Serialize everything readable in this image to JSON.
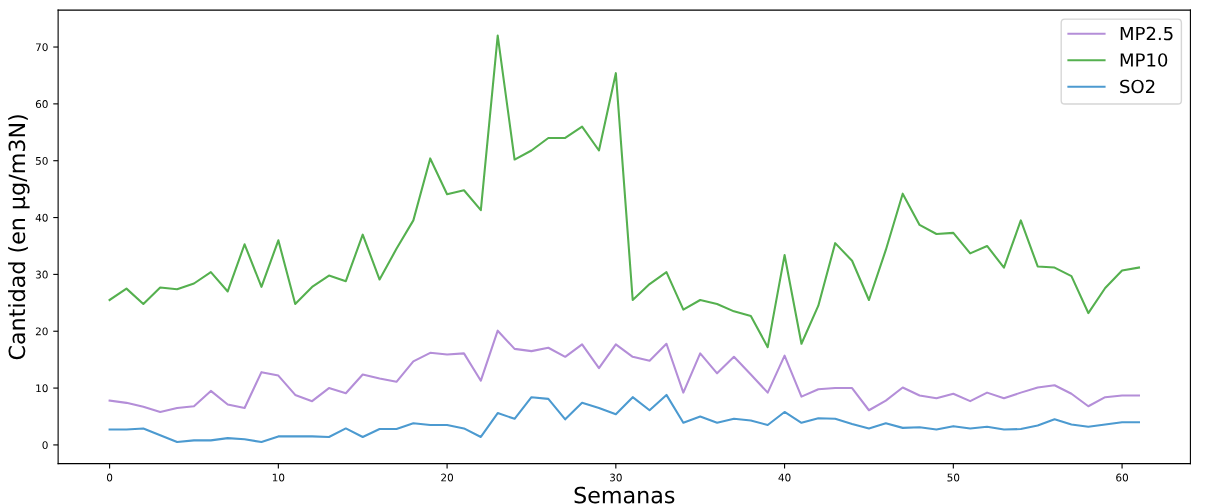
{
  "chart_data": {
    "type": "line",
    "xlabel": "Semanas",
    "ylabel": "Cantidad (en µg/m3N)",
    "x": [
      0,
      1,
      2,
      3,
      4,
      5,
      6,
      7,
      8,
      9,
      10,
      11,
      12,
      13,
      14,
      15,
      16,
      17,
      18,
      19,
      20,
      21,
      22,
      23,
      24,
      25,
      26,
      27,
      28,
      29,
      30,
      31,
      32,
      33,
      34,
      35,
      36,
      37,
      38,
      39,
      40,
      41,
      42,
      43,
      44,
      45,
      46,
      47,
      48,
      49,
      50,
      51,
      52,
      53,
      54,
      55,
      56,
      57,
      58,
      59,
      60,
      61
    ],
    "series": [
      {
        "name": "MP2.5",
        "color": "#b48ed8",
        "values": [
          7.8,
          7.4,
          6.7,
          5.8,
          6.5,
          6.8,
          9.5,
          7.1,
          6.5,
          12.8,
          12.2,
          8.8,
          7.7,
          10.0,
          9.1,
          12.4,
          11.7,
          11.1,
          14.7,
          16.2,
          15.9,
          16.1,
          11.3,
          20.1,
          16.9,
          16.5,
          17.1,
          15.5,
          17.7,
          13.5,
          17.7,
          15.5,
          14.8,
          17.8,
          9.2,
          16.1,
          12.6,
          15.5,
          12.4,
          9.2,
          15.7,
          8.5,
          9.8,
          10.0,
          10.0,
          6.1,
          7.8,
          10.1,
          8.7,
          8.2,
          9.0,
          7.7,
          9.2,
          8.2,
          9.2,
          10.1,
          10.5,
          9.0,
          6.8,
          8.4,
          8.7,
          8.7
        ]
      },
      {
        "name": "MP10",
        "color": "#55b04f",
        "values": [
          25.5,
          27.5,
          24.8,
          27.7,
          27.4,
          28.4,
          30.4,
          27.0,
          35.3,
          27.8,
          36.0,
          24.8,
          27.8,
          29.8,
          28.8,
          37.0,
          29.1,
          34.5,
          39.5,
          50.4,
          44.1,
          44.8,
          41.3,
          72.0,
          50.2,
          51.8,
          54.0,
          54.0,
          56.0,
          51.8,
          65.4,
          25.5,
          28.3,
          30.4,
          23.8,
          25.5,
          24.8,
          23.5,
          22.7,
          17.2,
          33.4,
          17.8,
          24.5,
          35.5,
          32.4,
          25.5,
          34.3,
          44.2,
          38.7,
          37.1,
          37.3,
          33.7,
          35.0,
          31.2,
          39.5,
          31.4,
          31.2,
          29.7,
          23.2,
          27.6,
          30.7,
          31.2
        ]
      },
      {
        "name": "SO2",
        "color": "#4c9ad0",
        "values": [
          2.7,
          2.7,
          2.9,
          1.7,
          0.5,
          0.8,
          0.8,
          1.2,
          1.0,
          0.5,
          1.5,
          1.5,
          1.5,
          1.4,
          2.9,
          1.4,
          2.8,
          2.8,
          3.8,
          3.5,
          3.5,
          2.9,
          1.4,
          5.6,
          4.6,
          8.4,
          8.1,
          4.5,
          7.4,
          6.5,
          5.4,
          8.4,
          6.1,
          8.8,
          3.9,
          5.0,
          3.9,
          4.6,
          4.3,
          3.5,
          5.8,
          3.9,
          4.7,
          4.6,
          3.7,
          2.9,
          3.8,
          3.0,
          3.1,
          2.7,
          3.3,
          2.9,
          3.2,
          2.7,
          2.8,
          3.4,
          4.5,
          3.6,
          3.2,
          3.6,
          4.0,
          4.0
        ]
      }
    ],
    "xlim": [
      -3.05,
      64.05
    ],
    "xticks": [
      0,
      10,
      20,
      30,
      40,
      50,
      60
    ],
    "ylim": [
      -3.3,
      76.5
    ],
    "yticks": [
      0,
      10,
      20,
      30,
      40,
      50,
      60,
      70
    ],
    "grid": false,
    "legend": "top right",
    "marker": "none",
    "line_style": "solid"
  }
}
